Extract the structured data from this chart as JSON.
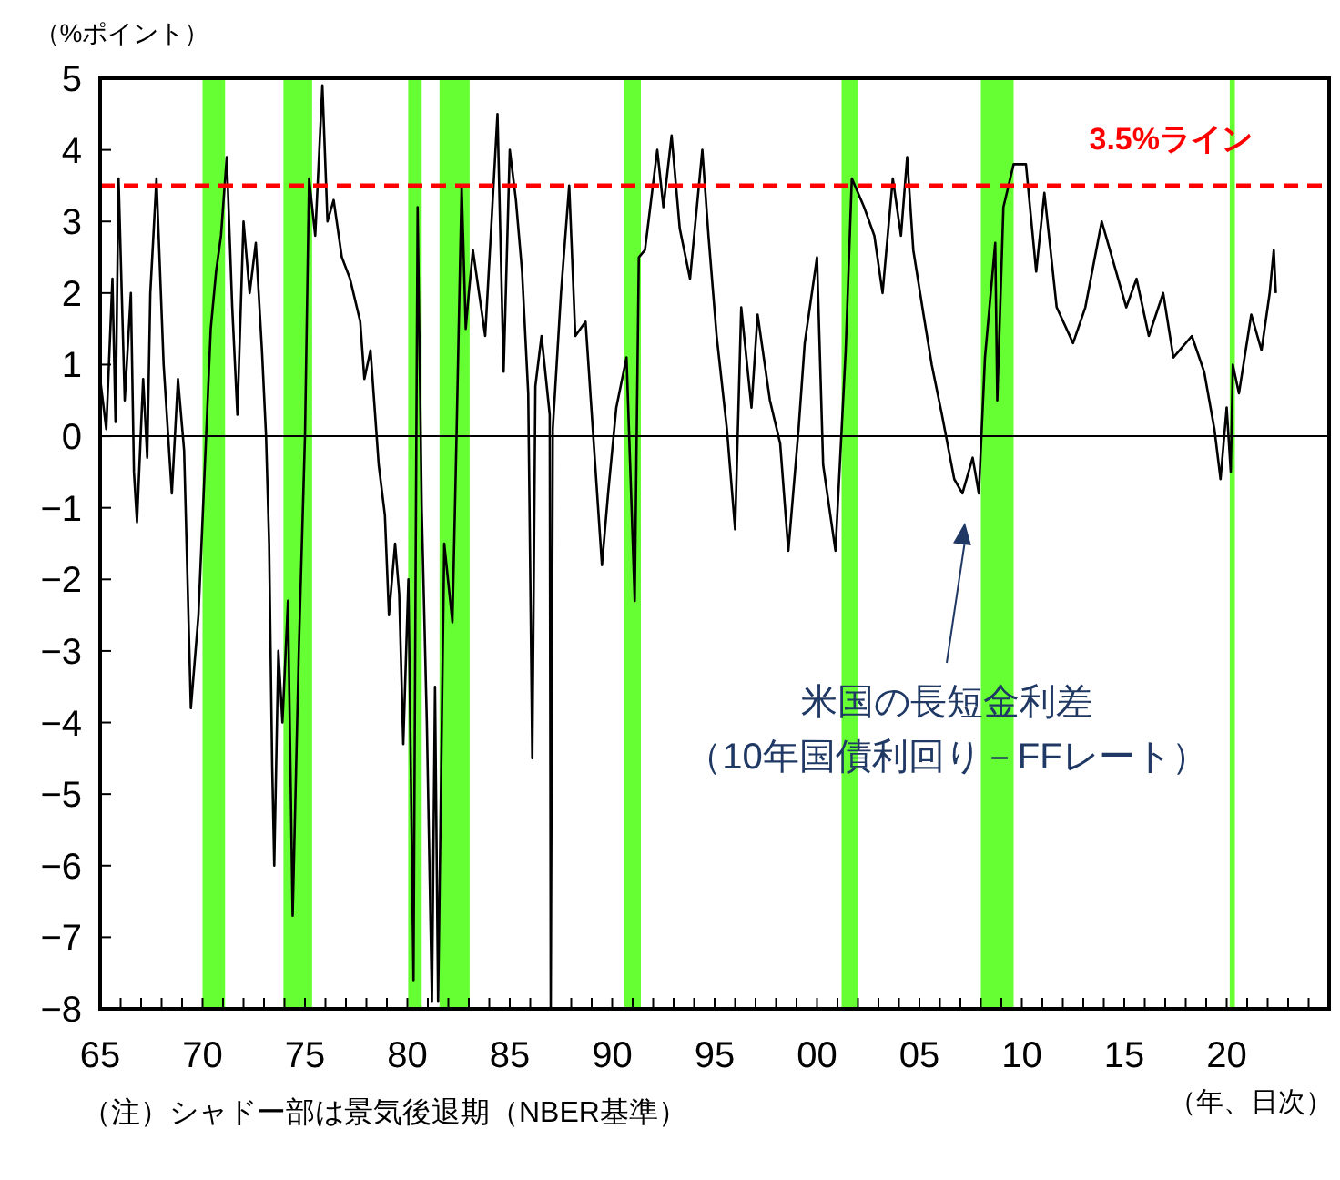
{
  "chart_data": {
    "type": "line",
    "xlabel": "（年、日次）",
    "ylabel": "（%ポイント）",
    "x": [
      1965.0,
      1965.3,
      1965.6,
      1965.75,
      1965.9,
      1966.2,
      1966.5,
      1966.65,
      1966.8,
      1967.1,
      1967.3,
      1967.45,
      1967.75,
      1968.1,
      1968.5,
      1968.8,
      1969.1,
      1969.43,
      1969.8,
      1970.1,
      1970.4,
      1970.66,
      1970.9,
      1971.18,
      1971.45,
      1971.7,
      1972.0,
      1972.3,
      1972.6,
      1972.9,
      1973.1,
      1973.25,
      1973.4,
      1973.5,
      1973.7,
      1973.9,
      1974.17,
      1974.4,
      1974.7,
      1975.0,
      1975.2,
      1975.5,
      1975.85,
      1976.1,
      1976.4,
      1976.8,
      1977.2,
      1977.7,
      1977.9,
      1978.2,
      1978.6,
      1978.9,
      1979.1,
      1979.4,
      1979.6,
      1979.8,
      1980.05,
      1980.3,
      1980.4,
      1980.5,
      1980.7,
      1980.95,
      1981.2,
      1981.35,
      1981.5,
      1981.8,
      1982.2,
      1982.4,
      1982.65,
      1982.85,
      1983.0,
      1983.2,
      1983.8,
      1984.4,
      1984.7,
      1985.0,
      1985.3,
      1985.6,
      1985.9,
      1986.1,
      1986.25,
      1986.55,
      1986.95,
      1987.0,
      1987.1,
      1987.5,
      1987.9,
      1988.2,
      1988.7,
      1989.1,
      1989.5,
      1989.8,
      1990.2,
      1990.7,
      1991.1,
      1991.3,
      1991.6,
      1992.2,
      1992.5,
      1992.9,
      1993.3,
      1993.8,
      1994.4,
      1994.7,
      1995.1,
      1995.6,
      1996.0,
      1996.3,
      1996.8,
      1997.1,
      1997.7,
      1998.2,
      1998.6,
      1999.1,
      1999.4,
      2000.0,
      2000.3,
      2000.9,
      2001.4,
      2001.7,
      2002.3,
      2002.8,
      2003.2,
      2003.7,
      2004.1,
      2004.4,
      2004.7,
      2005.2,
      2005.6,
      2006.1,
      2006.7,
      2007.1,
      2007.6,
      2007.9,
      2008.2,
      2008.7,
      2008.8,
      2009.1,
      2009.6,
      2010.2,
      2010.7,
      2011.1,
      2011.7,
      2012.5,
      2013.1,
      2013.9,
      2014.5,
      2015.1,
      2015.6,
      2016.2,
      2016.9,
      2017.4,
      2018.3,
      2018.9,
      2019.4,
      2019.7,
      2020.0,
      2020.2,
      2020.3,
      2020.6,
      2021.2,
      2021.7,
      2022.1,
      2022.3,
      2022.4
    ],
    "values": [
      0.8,
      0.1,
      2.2,
      0.2,
      3.6,
      0.5,
      2.0,
      -0.5,
      -1.2,
      0.8,
      -0.3,
      2.0,
      3.6,
      1.0,
      -0.8,
      0.8,
      -0.2,
      -3.8,
      -2.5,
      -0.5,
      1.5,
      2.3,
      2.8,
      3.9,
      1.8,
      0.3,
      3.0,
      2.0,
      2.7,
      1.2,
      0.0,
      -1.5,
      -4.6,
      -6.0,
      -3.0,
      -4.0,
      -2.3,
      -6.7,
      -3.0,
      0.0,
      3.6,
      2.8,
      4.9,
      3.0,
      3.3,
      2.5,
      2.2,
      1.6,
      0.8,
      1.2,
      -0.4,
      -1.1,
      -2.5,
      -1.5,
      -2.2,
      -4.3,
      -2.0,
      -7.6,
      -2.0,
      3.2,
      -1.0,
      -4.0,
      -7.9,
      -3.5,
      -7.9,
      -1.5,
      -2.6,
      0.0,
      3.5,
      1.5,
      2.0,
      2.6,
      1.4,
      4.5,
      0.9,
      4.0,
      3.3,
      2.3,
      0.6,
      -4.5,
      0.7,
      1.4,
      0.3,
      -8,
      0.1,
      2.0,
      3.5,
      1.4,
      1.6,
      -0.1,
      -1.8,
      -0.8,
      0.4,
      1.1,
      -2.3,
      2.5,
      2.6,
      4.0,
      3.2,
      4.2,
      2.9,
      2.2,
      4.0,
      2.8,
      1.4,
      0.1,
      -1.3,
      1.8,
      0.4,
      1.7,
      0.5,
      -0.1,
      -1.6,
      0.1,
      1.3,
      2.5,
      -0.4,
      -1.6,
      1.2,
      3.6,
      3.2,
      2.8,
      2.0,
      3.6,
      2.8,
      3.9,
      2.6,
      1.7,
      1.0,
      0.3,
      -0.6,
      -0.8,
      -0.3,
      -0.8,
      1.1,
      2.7,
      0.5,
      3.2,
      3.8,
      3.8,
      2.3,
      3.4,
      1.8,
      1.3,
      1.8,
      3.0,
      2.4,
      1.8,
      2.2,
      1.4,
      2.0,
      1.1,
      1.4,
      0.9,
      0.1,
      -0.6,
      0.4,
      -0.5,
      1.0,
      0.6,
      1.7,
      1.2,
      2.0,
      2.6,
      2.0
    ],
    "color": "#000000",
    "xlim": [
      1965,
      2025
    ],
    "ylim": [
      -8,
      5
    ],
    "xticks": [
      {
        "value": 1965,
        "label": "65"
      },
      {
        "value": 1966,
        "label": null
      },
      {
        "value": 1967,
        "label": null
      },
      {
        "value": 1968,
        "label": null
      },
      {
        "value": 1969,
        "label": null
      },
      {
        "value": 1970,
        "label": "70"
      },
      {
        "value": 1971,
        "label": null
      },
      {
        "value": 1972,
        "label": null
      },
      {
        "value": 1973,
        "label": null
      },
      {
        "value": 1974,
        "label": null
      },
      {
        "value": 1975,
        "label": "75"
      },
      {
        "value": 1976,
        "label": null
      },
      {
        "value": 1977,
        "label": null
      },
      {
        "value": 1978,
        "label": null
      },
      {
        "value": 1979,
        "label": null
      },
      {
        "value": 1980,
        "label": "80"
      },
      {
        "value": 1981,
        "label": null
      },
      {
        "value": 1982,
        "label": null
      },
      {
        "value": 1983,
        "label": null
      },
      {
        "value": 1984,
        "label": null
      },
      {
        "value": 1985,
        "label": "85"
      },
      {
        "value": 1986,
        "label": null
      },
      {
        "value": 1987,
        "label": null
      },
      {
        "value": 1988,
        "label": null
      },
      {
        "value": 1989,
        "label": null
      },
      {
        "value": 1990,
        "label": "90"
      },
      {
        "value": 1991,
        "label": null
      },
      {
        "value": 1992,
        "label": null
      },
      {
        "value": 1993,
        "label": null
      },
      {
        "value": 1994,
        "label": null
      },
      {
        "value": 1995,
        "label": "95"
      },
      {
        "value": 1996,
        "label": null
      },
      {
        "value": 1997,
        "label": null
      },
      {
        "value": 1998,
        "label": null
      },
      {
        "value": 1999,
        "label": null
      },
      {
        "value": 2000,
        "label": "00"
      },
      {
        "value": 2001,
        "label": null
      },
      {
        "value": 2002,
        "label": null
      },
      {
        "value": 2003,
        "label": null
      },
      {
        "value": 2004,
        "label": null
      },
      {
        "value": 2005,
        "label": "05"
      },
      {
        "value": 2006,
        "label": null
      },
      {
        "value": 2007,
        "label": null
      },
      {
        "value": 2008,
        "label": null
      },
      {
        "value": 2009,
        "label": null
      },
      {
        "value": 2010,
        "label": "10"
      },
      {
        "value": 2011,
        "label": null
      },
      {
        "value": 2012,
        "label": null
      },
      {
        "value": 2013,
        "label": null
      },
      {
        "value": 2014,
        "label": null
      },
      {
        "value": 2015,
        "label": "15"
      },
      {
        "value": 2016,
        "label": null
      },
      {
        "value": 2017,
        "label": null
      },
      {
        "value": 2018,
        "label": null
      },
      {
        "value": 2019,
        "label": null
      },
      {
        "value": 2020,
        "label": "20"
      },
      {
        "value": 2021,
        "label": null
      },
      {
        "value": 2022,
        "label": null
      },
      {
        "value": 2023,
        "label": null
      },
      {
        "value": 2024,
        "label": null
      }
    ],
    "yticks": [
      -8,
      -7,
      -6,
      -5,
      -4,
      -3,
      -2,
      -1,
      0,
      1,
      2,
      3,
      4,
      5
    ],
    "ref_lines": [
      {
        "axis": "y",
        "value": 3.5,
        "label": "3.5%ライン",
        "color": "#ff0000",
        "line_style": "dashed"
      },
      {
        "axis": "y",
        "value": 0,
        "color": "#000000",
        "line_style": "solid"
      }
    ],
    "bands": [
      {
        "axis": "x",
        "from": 1970.0,
        "to": 1971.1,
        "color": "#66ff33"
      },
      {
        "axis": "x",
        "from": 1973.95,
        "to": 1975.35,
        "color": "#66ff33"
      },
      {
        "axis": "x",
        "from": 1980.04,
        "to": 1980.7,
        "color": "#66ff33"
      },
      {
        "axis": "x",
        "from": 1981.57,
        "to": 1983.04,
        "color": "#66ff33"
      },
      {
        "axis": "x",
        "from": 1990.6,
        "to": 1991.4,
        "color": "#66ff33"
      },
      {
        "axis": "x",
        "from": 2001.2,
        "to": 2002.0,
        "color": "#66ff33"
      },
      {
        "axis": "x",
        "from": 2008.0,
        "to": 2009.6,
        "color": "#66ff33"
      },
      {
        "axis": "x",
        "from": 2020.15,
        "to": 2020.4,
        "color": "#66ff33"
      }
    ],
    "annotations": [
      "米国の長短金利差",
      "（10年国債利回り－FFレート）",
      "（注）シャドー部は景気後退期（NBER基準）"
    ]
  }
}
